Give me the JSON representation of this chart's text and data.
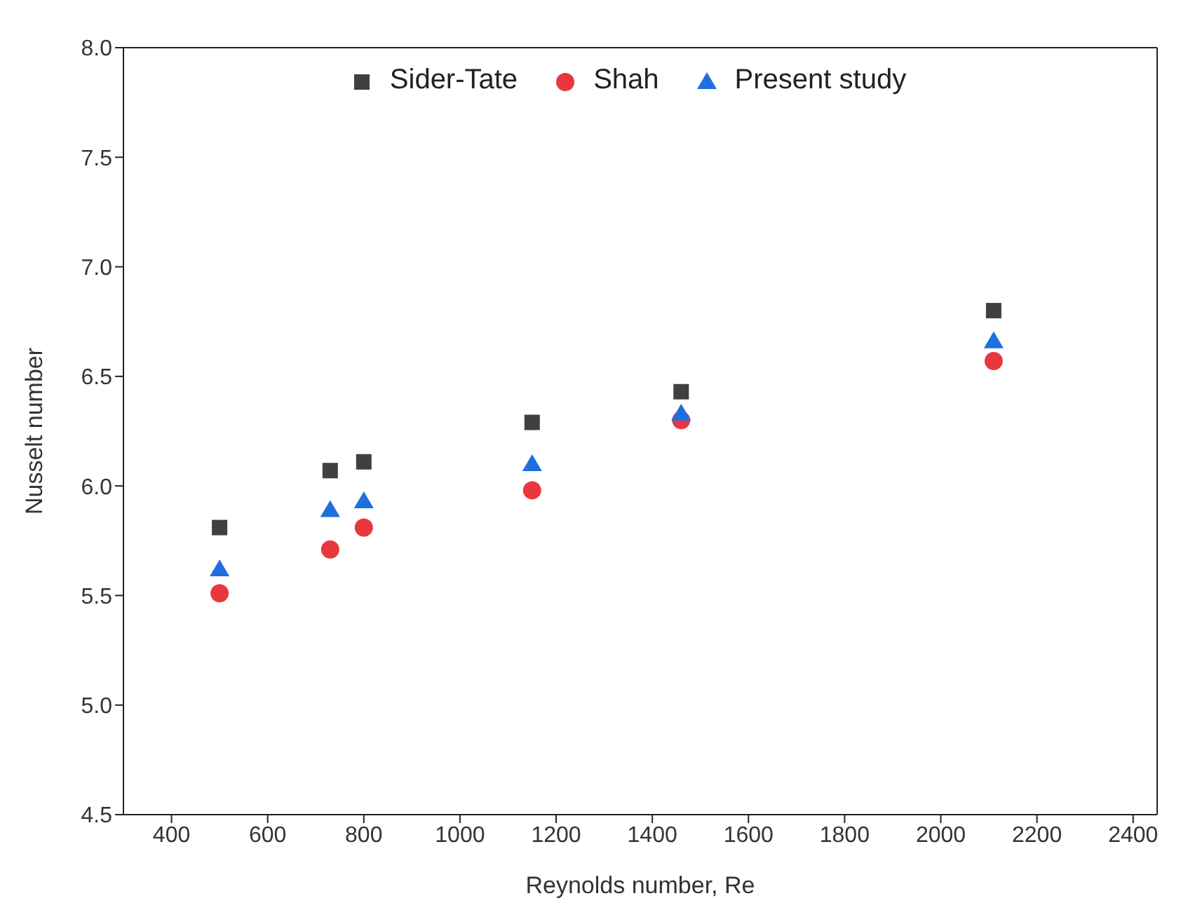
{
  "chart_data": {
    "type": "scatter",
    "xlabel": "Reynolds number, Re",
    "ylabel": "Nusselt number",
    "x": [
      500,
      730,
      800,
      1150,
      1460,
      2110
    ],
    "series": [
      {
        "name": "Sider-Tate",
        "color": "#404040",
        "marker": "square",
        "values": [
          5.81,
          6.07,
          6.11,
          6.29,
          6.43,
          6.8
        ]
      },
      {
        "name": "Shah",
        "color": "#e8383d",
        "marker": "circle",
        "values": [
          5.51,
          5.71,
          5.81,
          5.98,
          6.3,
          6.57
        ]
      },
      {
        "name": "Present study",
        "color": "#1f6fde",
        "marker": "triangle",
        "values": [
          5.62,
          5.89,
          5.93,
          6.1,
          6.33,
          6.66
        ]
      }
    ],
    "xlim": [
      300,
      2450
    ],
    "xticks": [
      400,
      600,
      800,
      1000,
      1200,
      1400,
      1600,
      1800,
      2000,
      2200,
      2400
    ],
    "ylim": [
      4.5,
      8.0
    ],
    "yticks": [
      {
        "value": 4.5,
        "label": "4.5"
      },
      {
        "value": 5.0,
        "label": "5.0"
      },
      {
        "value": 5.5,
        "label": "5.5"
      },
      {
        "value": 6.0,
        "label": "6.0"
      },
      {
        "value": 6.5,
        "label": "6.5"
      },
      {
        "value": 7.0,
        "label": "7.0"
      },
      {
        "value": 7.5,
        "label": "7.5"
      },
      {
        "value": 8.0,
        "label": "8.0"
      }
    ],
    "legend": "top"
  }
}
